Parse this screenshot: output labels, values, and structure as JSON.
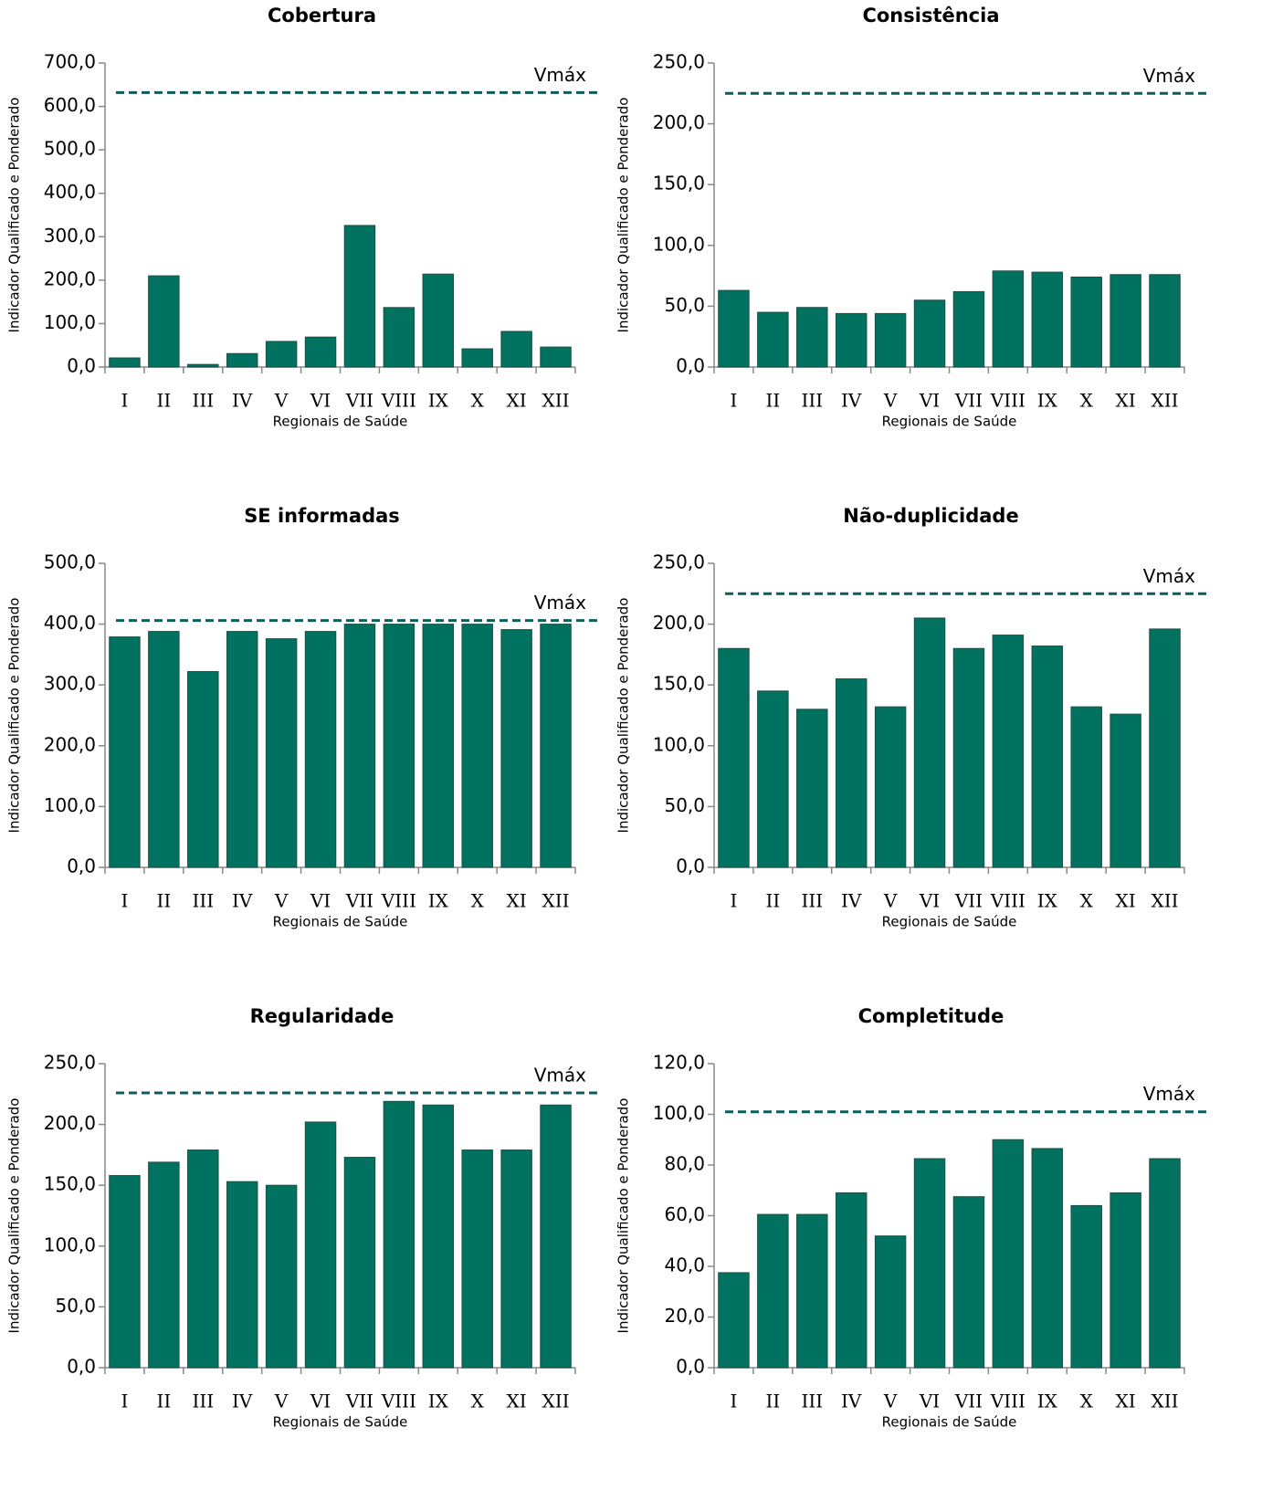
{
  "chart_data": [
    {
      "type": "bar",
      "title": "Cobertura",
      "xlabel": "Regionais de Saúde",
      "ylabel": "Indicador Qualificado e Ponderado",
      "color": "#00725f",
      "categories": [
        "I",
        "II",
        "III",
        "IV",
        "V",
        "VI",
        "VII",
        "VIII",
        "IX",
        "X",
        "XI",
        "XII"
      ],
      "values": [
        21,
        210,
        6,
        31,
        59,
        69,
        326,
        137,
        214,
        42,
        82,
        46
      ],
      "ylim": [
        0,
        700
      ],
      "yticks": [
        {
          "value": 0,
          "label": "0,0"
        },
        {
          "value": 100,
          "label": "100,0"
        },
        {
          "value": 200,
          "label": "200,0"
        },
        {
          "value": 300,
          "label": "300,0"
        },
        {
          "value": 400,
          "label": "400,0"
        },
        {
          "value": 500,
          "label": "500,0"
        },
        {
          "value": 600,
          "label": "600,0"
        },
        {
          "value": 700,
          "label": "700,0"
        }
      ],
      "ref_line": {
        "label": "Vmáx",
        "value": 632,
        "color": "#0b5e5a"
      }
    },
    {
      "type": "bar",
      "title": "Consistência",
      "xlabel": "Regionais de Saúde",
      "ylabel": "Indicador Qualificado e Ponderado",
      "color": "#00725f",
      "categories": [
        "I",
        "II",
        "III",
        "IV",
        "V",
        "VI",
        "VII",
        "VIII",
        "IX",
        "X",
        "XI",
        "XII"
      ],
      "values": [
        63,
        45,
        49,
        44,
        44,
        55,
        62,
        79,
        78,
        74,
        76,
        76
      ],
      "ylim": [
        0,
        250
      ],
      "yticks": [
        {
          "value": 0,
          "label": "0,0"
        },
        {
          "value": 50,
          "label": "50,0"
        },
        {
          "value": 100,
          "label": "100,0"
        },
        {
          "value": 150,
          "label": "150,0"
        },
        {
          "value": 200,
          "label": "200,0"
        },
        {
          "value": 250,
          "label": "250,0"
        }
      ],
      "ref_line": {
        "label": "Vmáx",
        "value": 225,
        "color": "#0b5e5a"
      }
    },
    {
      "type": "bar",
      "title": "SE informadas",
      "xlabel": "Regionais de Saúde",
      "ylabel": "Indicador Qualificado e Ponderado",
      "color": "#00725f",
      "categories": [
        "I",
        "II",
        "III",
        "IV",
        "V",
        "VI",
        "VII",
        "VIII",
        "IX",
        "X",
        "XI",
        "XII"
      ],
      "values": [
        379,
        388,
        322,
        388,
        376,
        388,
        400,
        400,
        400,
        400,
        391,
        400
      ],
      "ylim": [
        0,
        500
      ],
      "yticks": [
        {
          "value": 0,
          "label": "0,0"
        },
        {
          "value": 100,
          "label": "100,0"
        },
        {
          "value": 200,
          "label": "200,0"
        },
        {
          "value": 300,
          "label": "300,0"
        },
        {
          "value": 400,
          "label": "400,0"
        },
        {
          "value": 500,
          "label": "500,0"
        }
      ],
      "ref_line": {
        "label": "Vmáx",
        "value": 406,
        "color": "#0b5e5a"
      }
    },
    {
      "type": "bar",
      "title": "Não-duplicidade",
      "xlabel": "Regionais de Saúde",
      "ylabel": "Indicador Qualificado e Ponderado",
      "color": "#00725f",
      "categories": [
        "I",
        "II",
        "III",
        "IV",
        "V",
        "VI",
        "VII",
        "VIII",
        "IX",
        "X",
        "XI",
        "XII"
      ],
      "values": [
        180,
        145,
        130,
        155,
        132,
        205,
        180,
        191,
        182,
        132,
        126,
        196
      ],
      "ylim": [
        0,
        250
      ],
      "yticks": [
        {
          "value": 0,
          "label": "0,0"
        },
        {
          "value": 50,
          "label": "50,0"
        },
        {
          "value": 100,
          "label": "100,0"
        },
        {
          "value": 150,
          "label": "150,0"
        },
        {
          "value": 200,
          "label": "200,0"
        },
        {
          "value": 250,
          "label": "250,0"
        }
      ],
      "ref_line": {
        "label": "Vmáx",
        "value": 225,
        "color": "#0b5e5a"
      }
    },
    {
      "type": "bar",
      "title": "Regularidade",
      "xlabel": "Regionais de Saúde",
      "ylabel": "Indicador Qualificado e Ponderado",
      "color": "#00725f",
      "categories": [
        "I",
        "II",
        "III",
        "IV",
        "V",
        "VI",
        "VII",
        "VIII",
        "IX",
        "X",
        "XI",
        "XII"
      ],
      "values": [
        158,
        169,
        179,
        153,
        150,
        202,
        173,
        219,
        216,
        179,
        179,
        216
      ],
      "ylim": [
        0,
        250
      ],
      "yticks": [
        {
          "value": 0,
          "label": "0,0"
        },
        {
          "value": 50,
          "label": "50,0"
        },
        {
          "value": 100,
          "label": "100,0"
        },
        {
          "value": 150,
          "label": "150,0"
        },
        {
          "value": 200,
          "label": "200,0"
        },
        {
          "value": 250,
          "label": "250,0"
        }
      ],
      "ref_line": {
        "label": "Vmáx",
        "value": 226,
        "color": "#0b5e5a"
      }
    },
    {
      "type": "bar",
      "title": "Completitude",
      "xlabel": "Regionais de Saúde",
      "ylabel": "Indicador Qualificado e Ponderado",
      "color": "#00725f",
      "categories": [
        "I",
        "II",
        "III",
        "IV",
        "V",
        "VI",
        "VII",
        "VIII",
        "IX",
        "X",
        "XI",
        "XII"
      ],
      "values": [
        37.5,
        60.5,
        60.5,
        69,
        52,
        82.5,
        67.5,
        90,
        86.5,
        64,
        69,
        82.5
      ],
      "ylim": [
        0,
        120
      ],
      "yticks": [
        {
          "value": 0,
          "label": "0,0"
        },
        {
          "value": 20,
          "label": "20,0"
        },
        {
          "value": 40,
          "label": "40,0"
        },
        {
          "value": 60,
          "label": "60,0"
        },
        {
          "value": 80,
          "label": "80,0"
        },
        {
          "value": 100,
          "label": "100,0"
        },
        {
          "value": 120,
          "label": "120,0"
        }
      ],
      "ref_line": {
        "label": "Vmáx",
        "value": 101,
        "color": "#0b5e5a"
      }
    }
  ]
}
